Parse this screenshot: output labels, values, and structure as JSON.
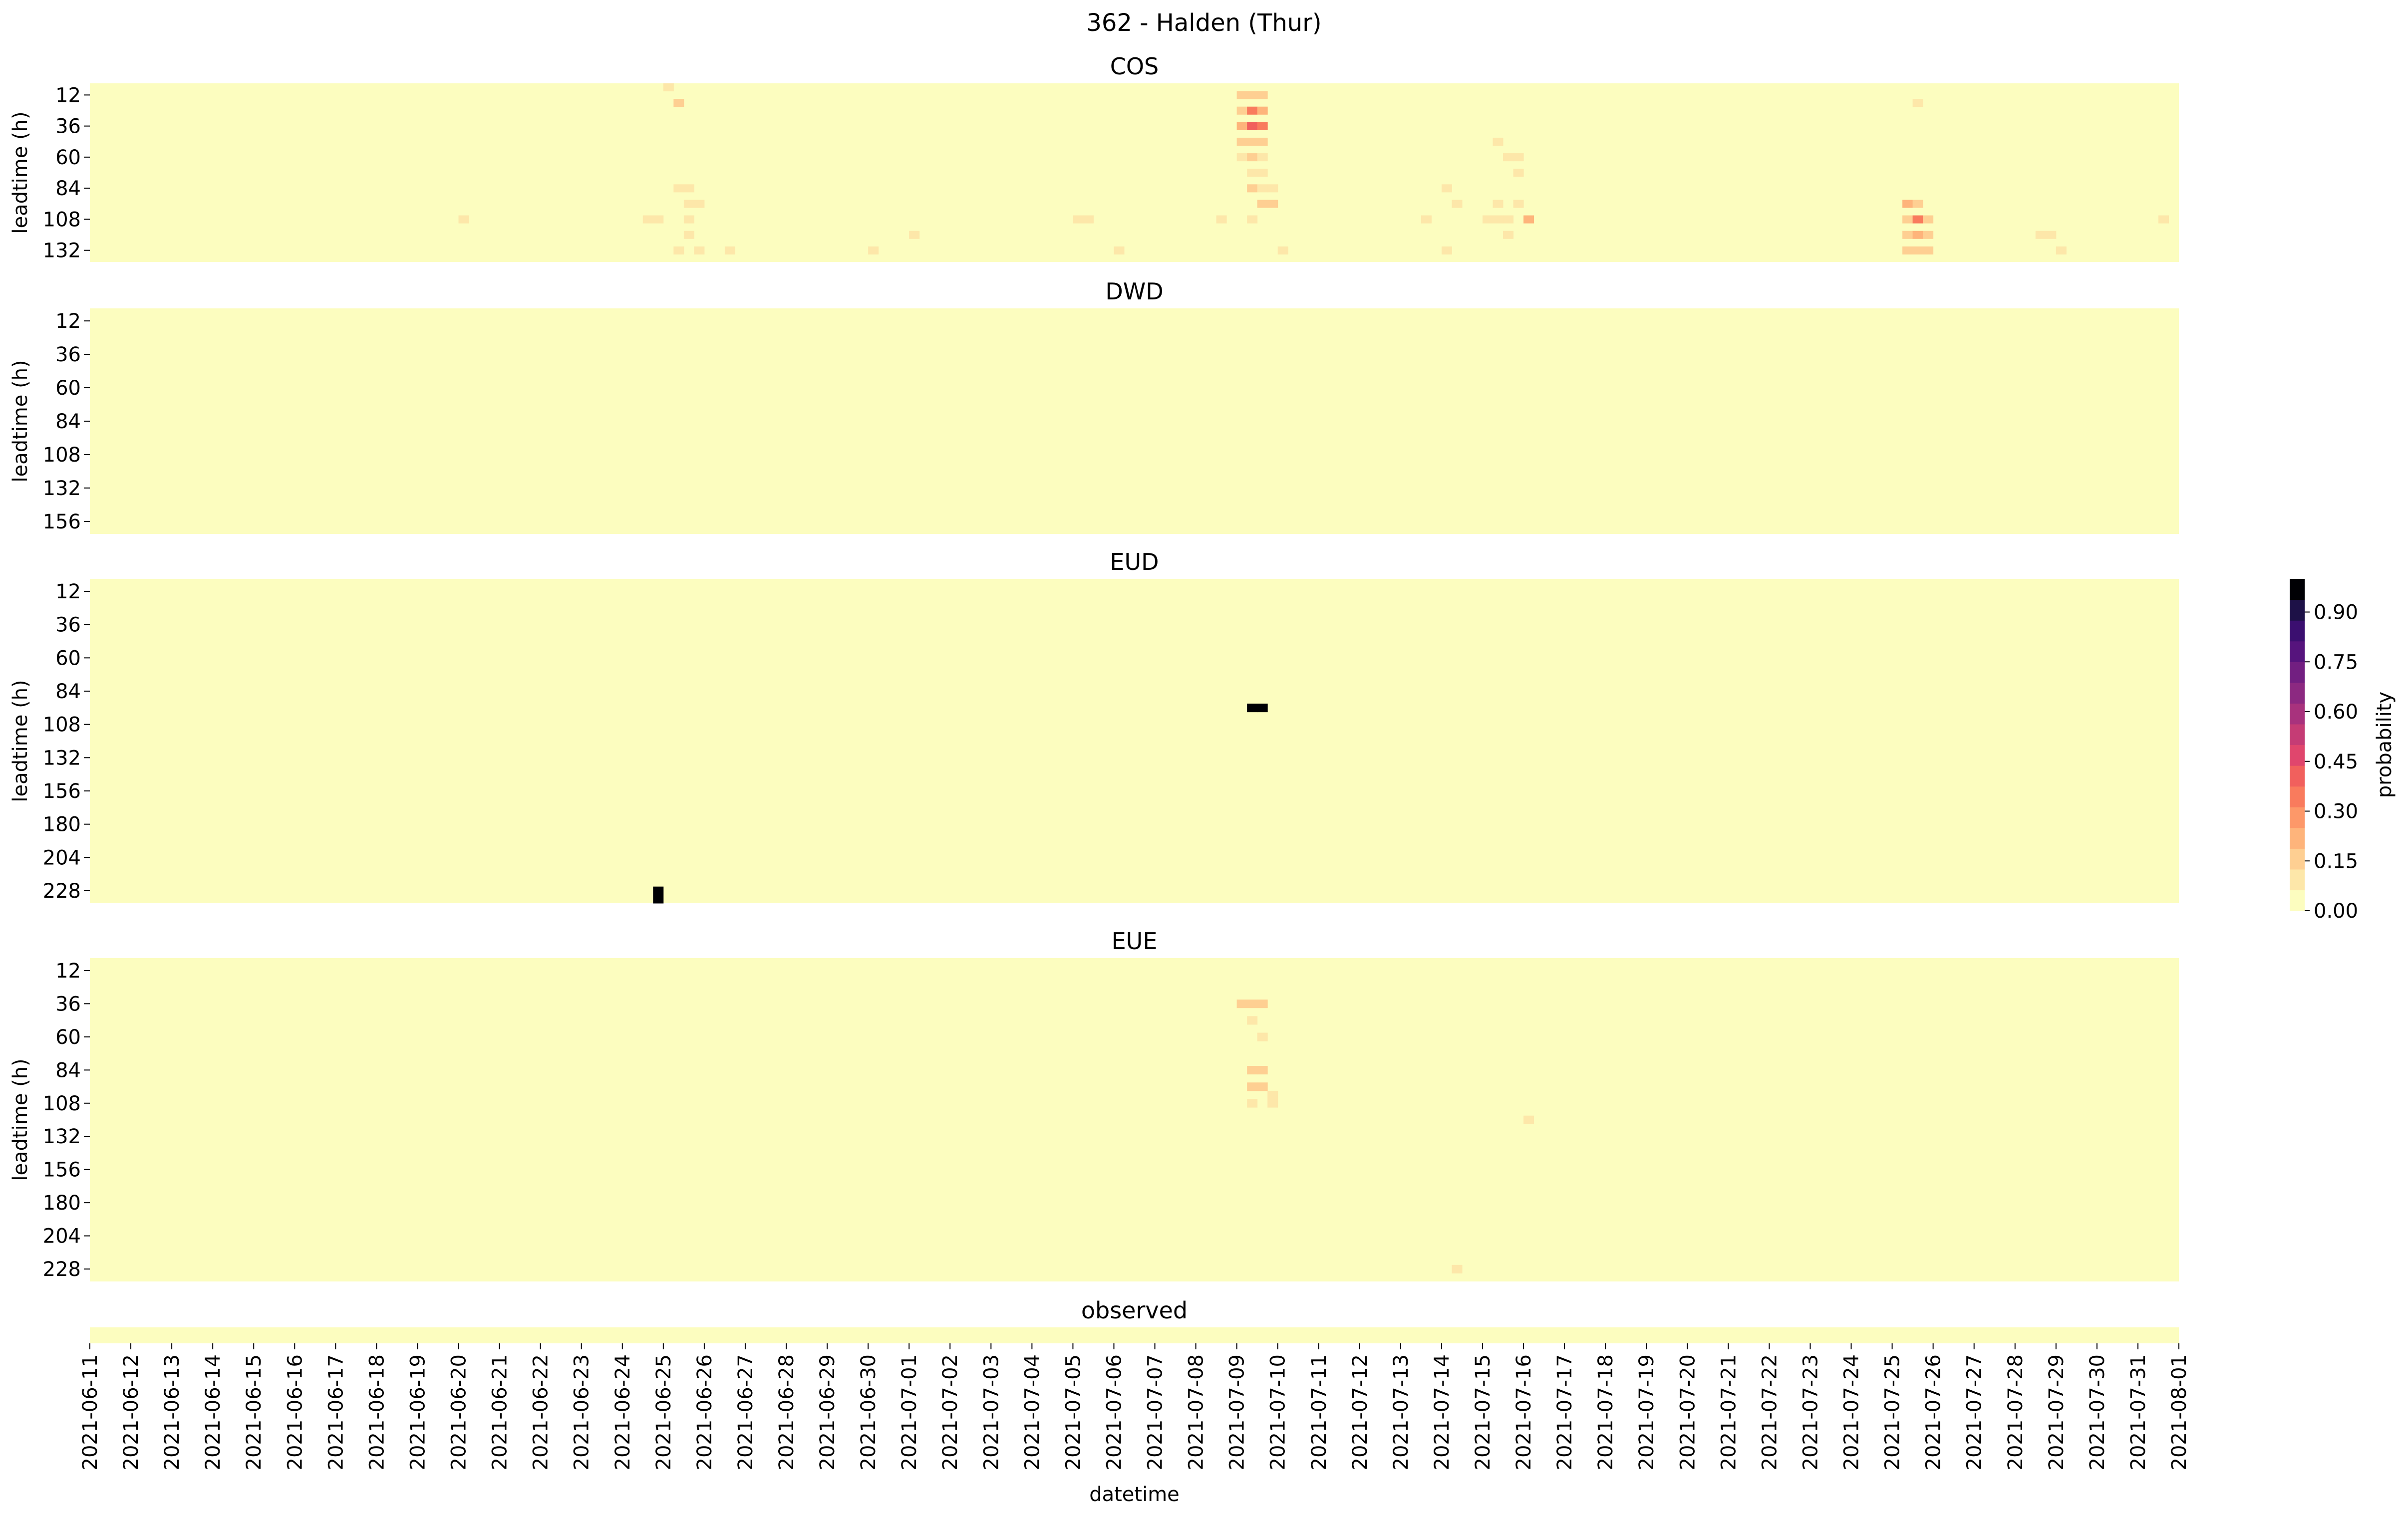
{
  "chart_data": {
    "type": "heatmap",
    "title": "362 - Halden (Thur)",
    "xlabel": "datetime",
    "x_ticks": [
      "2021-06-11",
      "2021-06-12",
      "2021-06-13",
      "2021-06-14",
      "2021-06-15",
      "2021-06-16",
      "2021-06-17",
      "2021-06-18",
      "2021-06-19",
      "2021-06-20",
      "2021-06-21",
      "2021-06-22",
      "2021-06-23",
      "2021-06-24",
      "2021-06-25",
      "2021-06-26",
      "2021-06-27",
      "2021-06-28",
      "2021-06-29",
      "2021-06-30",
      "2021-07-01",
      "2021-07-02",
      "2021-07-03",
      "2021-07-04",
      "2021-07-05",
      "2021-07-06",
      "2021-07-07",
      "2021-07-08",
      "2021-07-09",
      "2021-07-10",
      "2021-07-11",
      "2021-07-12",
      "2021-07-13",
      "2021-07-14",
      "2021-07-15",
      "2021-07-16",
      "2021-07-17",
      "2021-07-18",
      "2021-07-19",
      "2021-07-20",
      "2021-07-21",
      "2021-07-22",
      "2021-07-23",
      "2021-07-24",
      "2021-07-25",
      "2021-07-26",
      "2021-07-27",
      "2021-07-28",
      "2021-07-29",
      "2021-07-30",
      "2021-07-31",
      "2021-08-01"
    ],
    "colorbar": {
      "label": "probability",
      "ticks": [
        "0.00",
        "0.15",
        "0.30",
        "0.45",
        "0.60",
        "0.75",
        "0.90"
      ],
      "range": [
        0,
        1
      ],
      "colors": [
        "#fcfdbf",
        "#fde7a9",
        "#fecf92",
        "#feb47b",
        "#fd9869",
        "#f97b5d",
        "#f1605d",
        "#e0466d",
        "#c53c75",
        "#a8327d",
        "#8c2981",
        "#721f81",
        "#56147d",
        "#3b0f70",
        "#1d1147",
        "#000004"
      ]
    },
    "panels": [
      {
        "title": "COS",
        "ylabel": "leadtime (h)",
        "yticks": [
          "12",
          "36",
          "60",
          "84",
          "108",
          "132"
        ],
        "leadtime_range": [
          6,
          144
        ],
        "cells": [
          [
            "2021-06-25 00:00",
            6,
            0.05
          ],
          [
            "2021-06-25 06:00",
            18,
            0.1
          ],
          [
            "2021-06-25 06:00",
            84,
            0.08
          ],
          [
            "2021-06-25 12:00",
            84,
            0.08
          ],
          [
            "2021-06-25 12:00",
            96,
            0.08
          ],
          [
            "2021-06-25 18:00",
            96,
            0.08
          ],
          [
            "2021-06-25 12:00",
            108,
            0.08
          ],
          [
            "2021-06-25 12:00",
            120,
            0.06
          ],
          [
            "2021-06-25 06:00",
            132,
            0.07
          ],
          [
            "2021-06-25 18:00",
            132,
            0.07
          ],
          [
            "2021-06-24 12:00",
            108,
            0.08
          ],
          [
            "2021-06-24 18:00",
            108,
            0.08
          ],
          [
            "2021-06-20 00:00",
            108,
            0.06
          ],
          [
            "2021-06-26 12:00",
            132,
            0.06
          ],
          [
            "2021-06-30 00:00",
            132,
            0.06
          ],
          [
            "2021-07-01 00:00",
            120,
            0.06
          ],
          [
            "2021-07-05 00:00",
            108,
            0.08
          ],
          [
            "2021-07-05 06:00",
            108,
            0.08
          ],
          [
            "2021-07-06 00:00",
            132,
            0.06
          ],
          [
            "2021-07-08 12:00",
            108,
            0.06
          ],
          [
            "2021-07-09 00:00",
            12,
            0.12
          ],
          [
            "2021-07-09 06:00",
            12,
            0.12
          ],
          [
            "2021-07-09 12:00",
            12,
            0.1
          ],
          [
            "2021-07-09 00:00",
            24,
            0.15
          ],
          [
            "2021-07-09 06:00",
            24,
            0.35
          ],
          [
            "2021-07-09 12:00",
            24,
            0.22
          ],
          [
            "2021-07-09 00:00",
            36,
            0.18
          ],
          [
            "2021-07-09 06:00",
            36,
            0.38
          ],
          [
            "2021-07-09 12:00",
            36,
            0.35
          ],
          [
            "2021-07-09 00:00",
            48,
            0.12
          ],
          [
            "2021-07-09 06:00",
            48,
            0.15
          ],
          [
            "2021-07-09 12:00",
            48,
            0.12
          ],
          [
            "2021-07-09 00:00",
            60,
            0.08
          ],
          [
            "2021-07-09 06:00",
            60,
            0.12
          ],
          [
            "2021-07-09 12:00",
            60,
            0.08
          ],
          [
            "2021-07-09 06:00",
            72,
            0.08
          ],
          [
            "2021-07-09 12:00",
            72,
            0.06
          ],
          [
            "2021-07-09 06:00",
            84,
            0.1
          ],
          [
            "2021-07-09 12:00",
            84,
            0.08
          ],
          [
            "2021-07-09 18:00",
            84,
            0.08
          ],
          [
            "2021-07-09 12:00",
            96,
            0.1
          ],
          [
            "2021-07-09 18:00",
            96,
            0.1
          ],
          [
            "2021-07-09 06:00",
            108,
            0.06
          ],
          [
            "2021-07-10 00:00",
            132,
            0.06
          ],
          [
            "2021-07-13 12:00",
            108,
            0.06
          ],
          [
            "2021-07-14 00:00",
            84,
            0.06
          ],
          [
            "2021-07-14 00:00",
            132,
            0.06
          ],
          [
            "2021-07-14 06:00",
            96,
            0.06
          ],
          [
            "2021-07-15 00:00",
            108,
            0.08
          ],
          [
            "2021-07-15 06:00",
            108,
            0.08
          ],
          [
            "2021-07-15 12:00",
            108,
            0.08
          ],
          [
            "2021-07-15 06:00",
            96,
            0.08
          ],
          [
            "2021-07-15 12:00",
            120,
            0.08
          ],
          [
            "2021-07-15 12:00",
            60,
            0.08
          ],
          [
            "2021-07-15 18:00",
            60,
            0.08
          ],
          [
            "2021-07-15 18:00",
            72,
            0.08
          ],
          [
            "2021-07-15 06:00",
            48,
            0.06
          ],
          [
            "2021-07-15 18:00",
            96,
            0.06
          ],
          [
            "2021-07-16 00:00",
            108,
            0.18
          ],
          [
            "2021-07-25 12:00",
            18,
            0.06
          ],
          [
            "2021-07-25 06:00",
            96,
            0.18
          ],
          [
            "2021-07-25 06:00",
            108,
            0.15
          ],
          [
            "2021-07-25 12:00",
            108,
            0.35
          ],
          [
            "2021-07-25 18:00",
            108,
            0.12
          ],
          [
            "2021-07-25 06:00",
            120,
            0.1
          ],
          [
            "2021-07-25 12:00",
            120,
            0.2
          ],
          [
            "2021-07-25 18:00",
            120,
            0.15
          ],
          [
            "2021-07-25 06:00",
            132,
            0.1
          ],
          [
            "2021-07-25 12:00",
            132,
            0.1
          ],
          [
            "2021-07-25 18:00",
            132,
            0.1
          ],
          [
            "2021-07-25 12:00",
            96,
            0.12
          ],
          [
            "2021-07-28 12:00",
            120,
            0.08
          ],
          [
            "2021-07-28 18:00",
            120,
            0.08
          ],
          [
            "2021-07-29 00:00",
            132,
            0.06
          ],
          [
            "2021-07-31 12:00",
            108,
            0.06
          ]
        ]
      },
      {
        "title": "DWD",
        "ylabel": "leadtime (h)",
        "yticks": [
          "12",
          "36",
          "60",
          "84",
          "108",
          "132",
          "156"
        ],
        "leadtime_range": [
          6,
          168
        ],
        "cells": []
      },
      {
        "title": "EUD",
        "ylabel": "leadtime (h)",
        "yticks": [
          "12",
          "36",
          "60",
          "84",
          "108",
          "132",
          "156",
          "180",
          "204",
          "228"
        ],
        "leadtime_range": [
          6,
          240
        ],
        "cells": [
          [
            "2021-07-09 06:00",
            96,
            1.0
          ],
          [
            "2021-07-09 12:00",
            96,
            1.0
          ],
          [
            "2021-06-24 18:00",
            228,
            1.0
          ],
          [
            "2021-06-24 18:00",
            234,
            1.0
          ]
        ]
      },
      {
        "title": "EUE",
        "ylabel": "leadtime (h)",
        "yticks": [
          "12",
          "36",
          "60",
          "84",
          "108",
          "132",
          "156",
          "180",
          "204",
          "228"
        ],
        "leadtime_range": [
          6,
          240
        ],
        "cells": [
          [
            "2021-07-09 00:00",
            36,
            0.1
          ],
          [
            "2021-07-09 06:00",
            36,
            0.1
          ],
          [
            "2021-07-09 12:00",
            36,
            0.1
          ],
          [
            "2021-07-09 06:00",
            48,
            0.08
          ],
          [
            "2021-07-09 12:00",
            60,
            0.08
          ],
          [
            "2021-07-09 06:00",
            84,
            0.15
          ],
          [
            "2021-07-09 12:00",
            84,
            0.15
          ],
          [
            "2021-07-09 06:00",
            96,
            0.12
          ],
          [
            "2021-07-09 12:00",
            96,
            0.12
          ],
          [
            "2021-07-09 06:00",
            108,
            0.08
          ],
          [
            "2021-07-09 18:00",
            108,
            0.08
          ],
          [
            "2021-07-09 18:00",
            102,
            0.08
          ],
          [
            "2021-07-16 00:00",
            120,
            0.08
          ],
          [
            "2021-07-14 06:00",
            228,
            0.06
          ]
        ]
      },
      {
        "title": "observed",
        "ylabel": "",
        "yticks": [],
        "leadtime_range": [
          0,
          1
        ],
        "cells": []
      }
    ]
  }
}
